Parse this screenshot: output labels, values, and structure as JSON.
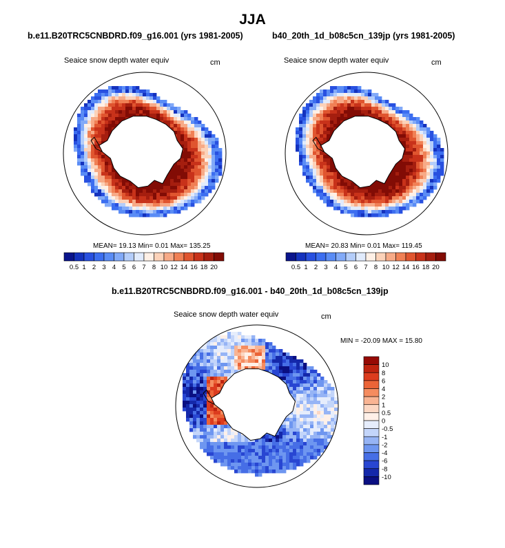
{
  "page": {
    "season_title": "JJA"
  },
  "chart_data": [
    {
      "type": "heatmap",
      "projection": "south-polar stereographic",
      "title": "b.e11.B20TRC5CNBDRD.f09_g16.001 (yrs 1981-2005)",
      "variable": "Seaice snow depth water equiv",
      "units": "cm",
      "stats": {
        "label": "MEAN=  19.13  Min=   0.01  Max= 135.25",
        "mean": 19.13,
        "min": 0.01,
        "max": 135.25
      },
      "colorbar": {
        "orientation": "horizontal",
        "levels": [
          "0.5",
          "1",
          "2",
          "3",
          "4",
          "5",
          "6",
          "7",
          "8",
          "10",
          "12",
          "14",
          "16",
          "18",
          "20"
        ],
        "colors": [
          "#0a148c",
          "#1432be",
          "#2850e0",
          "#3c6ef0",
          "#5a8cf5",
          "#82aaf8",
          "#b4cdfa",
          "#e1ebfc",
          "#fff0e6",
          "#fcd2b9",
          "#f7aa87",
          "#f08055",
          "#e0552f",
          "#c8321a",
          "#a51e0f",
          "#820c05"
        ]
      }
    },
    {
      "type": "heatmap",
      "projection": "south-polar stereographic",
      "title": "b40_20th_1d_b08c5cn_139jp (yrs 1981-2005)",
      "variable": "Seaice snow depth water equiv",
      "units": "cm",
      "stats": {
        "label": "MEAN=  20.83  Min=   0.01  Max= 119.45",
        "mean": 20.83,
        "min": 0.01,
        "max": 119.45
      },
      "colorbar": {
        "orientation": "horizontal",
        "levels": [
          "0.5",
          "1",
          "2",
          "3",
          "4",
          "5",
          "6",
          "7",
          "8",
          "10",
          "12",
          "14",
          "16",
          "18",
          "20"
        ],
        "colors": [
          "#0a148c",
          "#1432be",
          "#2850e0",
          "#3c6ef0",
          "#5a8cf5",
          "#82aaf8",
          "#b4cdfa",
          "#e1ebfc",
          "#fff0e6",
          "#fcd2b9",
          "#f7aa87",
          "#f08055",
          "#e0552f",
          "#c8321a",
          "#a51e0f",
          "#820c05"
        ]
      }
    },
    {
      "type": "heatmap",
      "projection": "south-polar stereographic",
      "title": "b.e11.B20TRC5CNBDRD.f09_g16.001 - b40_20th_1d_b08c5cn_139jp",
      "variable": "Seaice snow depth water equiv",
      "units": "cm",
      "stats": {
        "label": "MIN = -20.09 MAX =  15.80",
        "min": -20.09,
        "max": 15.8
      },
      "colorbar": {
        "orientation": "vertical",
        "levels": [
          "10",
          "8",
          "6",
          "4",
          "2",
          "1",
          "0.5",
          "0",
          "-0.5",
          "-1",
          "-2",
          "-4",
          "-6",
          "-8",
          "-10"
        ],
        "colors": [
          "#960a05",
          "#be230f",
          "#dc3c1e",
          "#eb6437",
          "#f58c5f",
          "#f9b493",
          "#fcd7c3",
          "#fff0e8",
          "#e6edfc",
          "#c3d5fa",
          "#96b4f5",
          "#6e96f0",
          "#466ee6",
          "#2846d2",
          "#1428aa",
          "#0a0f82"
        ]
      }
    }
  ]
}
